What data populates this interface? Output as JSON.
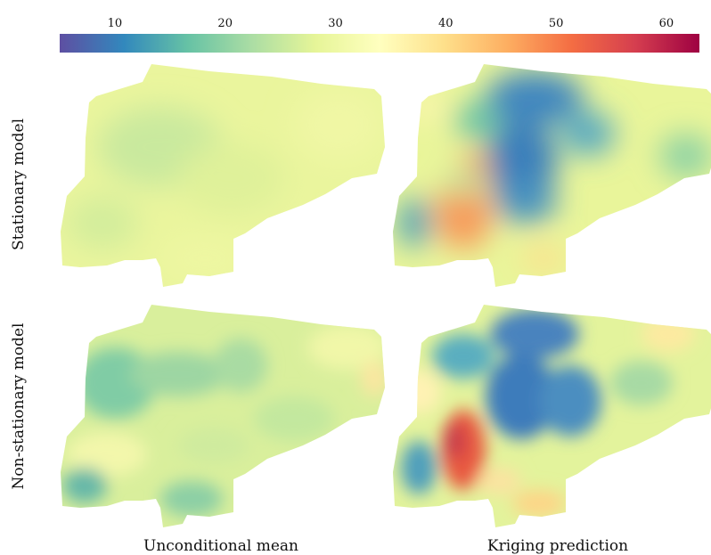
{
  "chart_data": {
    "type": "heatmap",
    "colorbar": {
      "ticks": [
        10,
        20,
        30,
        40,
        50,
        60
      ],
      "range": [
        5,
        63
      ],
      "colormap": "Spectral_r",
      "stops": [
        "#5e4fa2",
        "#3288bd",
        "#66c2a5",
        "#abdda4",
        "#e6f598",
        "#ffffbf",
        "#fee08b",
        "#fdae61",
        "#f46d43",
        "#d53e4f",
        "#9e0142"
      ]
    },
    "rows": [
      "Stationary model",
      "Non-stationary model"
    ],
    "columns": [
      "Unconditional mean",
      "Kriging prediction"
    ],
    "panels": [
      {
        "row": "Stationary model",
        "column": "Unconditional mean",
        "value_range": [
          26,
          29
        ]
      },
      {
        "row": "Stationary model",
        "column": "Kriging prediction",
        "value_range": [
          14,
          44
        ]
      },
      {
        "row": "Non-stationary model",
        "column": "Unconditional mean",
        "value_range": [
          12,
          40
        ]
      },
      {
        "row": "Non-stationary model",
        "column": "Kriging prediction",
        "value_range": [
          12,
          60
        ]
      }
    ]
  }
}
